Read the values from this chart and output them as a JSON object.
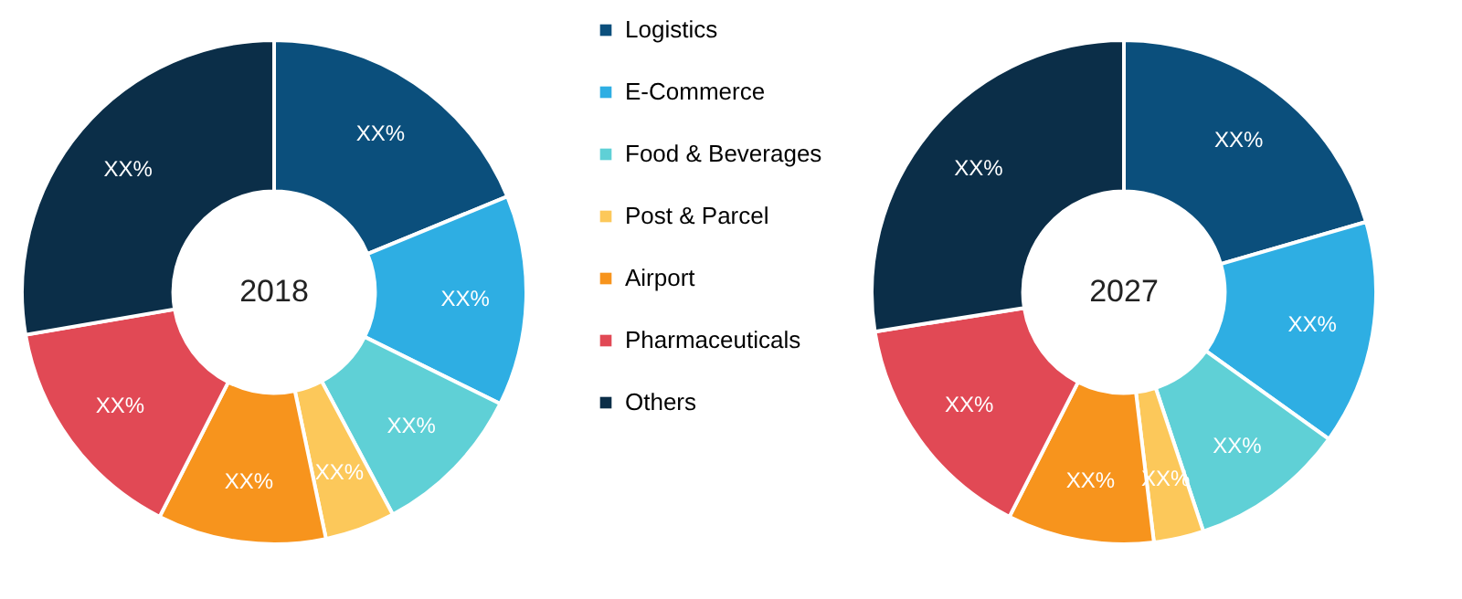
{
  "chart_data": [
    {
      "type": "donut",
      "title": "2018",
      "legend": "right",
      "categories": [
        "Logistics",
        "E-Commerce",
        "Food & Beverages",
        "Post & Parcel",
        "Airport",
        "Pharmaceuticals",
        "Others"
      ],
      "values": [
        18.8,
        13.5,
        9.9,
        4.5,
        10.8,
        14.8,
        27.7
      ],
      "colors": [
        "#0b4f7c",
        "#2eaee3",
        "#5fd0d6",
        "#fcc85a",
        "#f7941d",
        "#e14955",
        "#0b2e48"
      ],
      "value_labels": [
        "XX%",
        "XX%",
        "XX%",
        "XX%",
        "XX%",
        "XX%",
        "XX%"
      ]
    },
    {
      "type": "donut",
      "title": "2027",
      "categories": [
        null,
        null,
        null,
        null,
        null,
        null,
        null
      ],
      "values": [
        20.5,
        14.4,
        10.0,
        3.2,
        9.4,
        15.0,
        27.5
      ],
      "colors": [
        "#0b4f7c",
        "#2eaee3",
        "#5fd0d6",
        "#fcc85a",
        "#f7941d",
        "#e14955",
        "#0b2e48"
      ],
      "value_labels": [
        "XX%",
        "XX%",
        "XX%",
        "XX%",
        "XX%",
        "XX%",
        "XX%"
      ]
    }
  ]
}
